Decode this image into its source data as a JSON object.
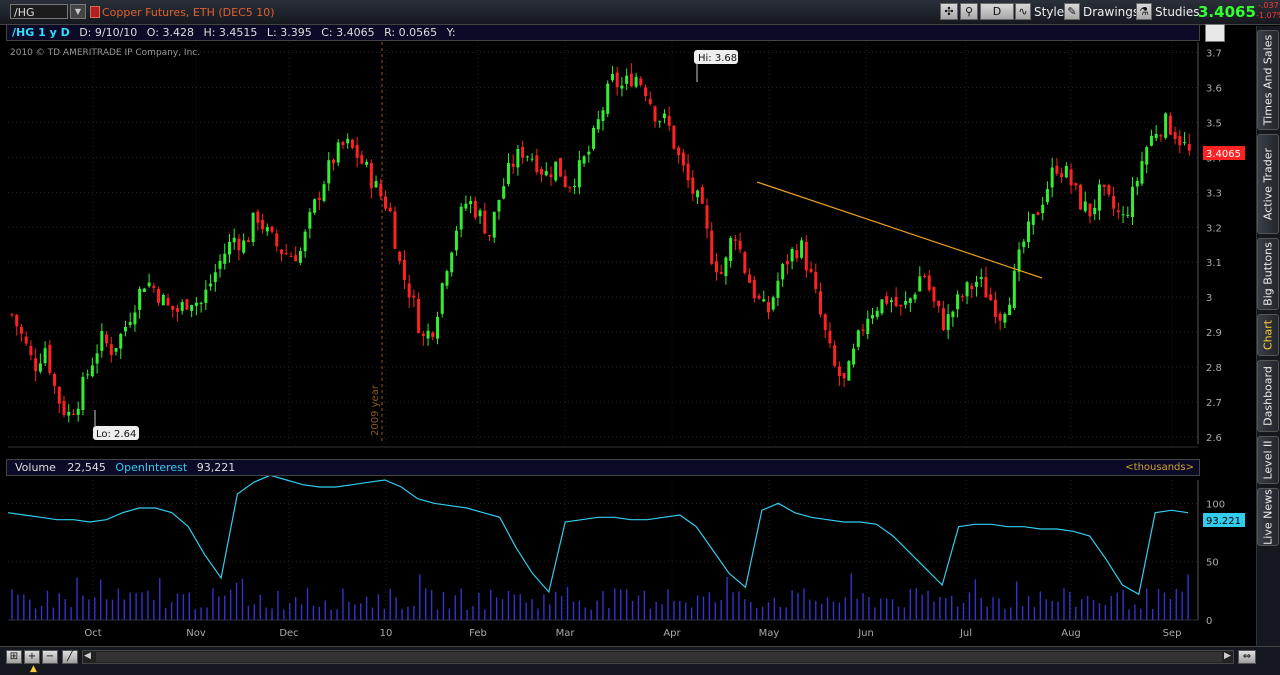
{
  "toolbar": {
    "symbol": "/HG",
    "description": "Copper Futures, ETH (DEC5 10)",
    "period_label": "D",
    "style_label": "Style",
    "drawings_label": "Drawings",
    "studies_label": "Studies",
    "last_price": "3.4065",
    "change_a": "-.037",
    "change_b": "-1.07%"
  },
  "side_tabs": [
    {
      "label": "Times And Sales",
      "active": false
    },
    {
      "label": "Active Trader",
      "active": false
    },
    {
      "label": "Big Buttons",
      "active": false
    },
    {
      "label": "Chart",
      "active": true
    },
    {
      "label": "Dashboard",
      "active": false
    },
    {
      "label": "Level II",
      "active": false
    },
    {
      "label": "Live News",
      "active": false
    }
  ],
  "info_bar": {
    "symbol": "/HG 1 y D",
    "date": "D: 9/10/10",
    "open": "O: 3.428",
    "high": "H: 3.4515",
    "low": "L: 3.395",
    "close": "C: 3.4065",
    "range": "R: 0.0565",
    "y": "Y:"
  },
  "copyright": "2010 © TD AMERITRADE IP Company, Inc.",
  "volume_bar": {
    "volume_label": "Volume",
    "volume_value": "22,545",
    "oi_label": "OpenInterest",
    "oi_value": "93,221",
    "units": "<thousands>"
  },
  "annotations": {
    "hi_label": "Hi: 3.68",
    "lo_label": "Lo: 2.64",
    "year_label": "2009 year",
    "price_tag": "3.4065",
    "oi_tag": "93.221"
  },
  "colors": {
    "up": "#33ee33",
    "down": "#ff2222",
    "trendline": "#e8a020",
    "oi_line": "#33ccee",
    "volume": "#3333cc",
    "axis_text": "#aaaaaa"
  },
  "chart_data": {
    "type": "candlestick",
    "price_axis": {
      "ticks": [
        "3.7",
        "3.6",
        "3.5",
        "3.4",
        "3.3",
        "3.2",
        "3.1",
        "3",
        "2.9",
        "2.8",
        "2.7",
        "2.6"
      ],
      "ylim": [
        2.58,
        3.73
      ]
    },
    "lower_axis": {
      "ticks": [
        "100",
        "50",
        "0"
      ],
      "ylim": [
        0,
        120
      ]
    },
    "x_ticks": [
      "Oct",
      "Nov",
      "Dec",
      "10",
      "Feb",
      "Mar",
      "Apr",
      "May",
      "Jun",
      "Jul",
      "Aug",
      "Sep"
    ],
    "close_path": [
      2.95,
      2.88,
      2.8,
      2.86,
      2.72,
      2.66,
      2.71,
      2.8,
      2.88,
      2.85,
      2.9,
      2.98,
      3.05,
      3.02,
      2.97,
      2.96,
      3.0,
      2.98,
      3.05,
      3.12,
      3.17,
      3.15,
      3.24,
      3.18,
      3.14,
      3.12,
      3.13,
      3.24,
      3.33,
      3.4,
      3.44,
      3.41,
      3.36,
      3.3,
      3.25,
      3.08,
      3.0,
      2.88,
      2.92,
      3.08,
      3.2,
      3.28,
      3.24,
      3.18,
      3.3,
      3.38,
      3.42,
      3.4,
      3.35,
      3.38,
      3.32,
      3.36,
      3.42,
      3.52,
      3.62,
      3.6,
      3.64,
      3.6,
      3.52,
      3.5,
      3.4,
      3.32,
      3.26,
      3.12,
      3.06,
      3.2,
      3.08,
      3.0,
      2.95,
      3.05,
      3.12,
      3.15,
      3.05,
      2.92,
      2.8,
      2.75,
      2.86,
      2.95,
      2.98,
      3.0,
      2.96,
      3.0,
      3.08,
      2.98,
      2.92,
      2.98,
      3.02,
      3.05,
      3.0,
      2.95,
      3.02,
      3.15,
      3.22,
      3.3,
      3.38,
      3.35,
      3.28,
      3.24,
      3.3,
      3.26,
      3.22,
      3.3,
      3.42,
      3.48,
      3.5,
      3.46,
      3.41
    ],
    "open_interest_path": [
      92,
      90,
      88,
      86,
      86,
      84,
      86,
      92,
      96,
      96,
      92,
      80,
      56,
      36,
      108,
      118,
      124,
      120,
      116,
      114,
      114,
      116,
      118,
      120,
      114,
      104,
      100,
      98,
      96,
      92,
      88,
      62,
      40,
      24,
      84,
      86,
      88,
      88,
      86,
      86,
      88,
      90,
      80,
      60,
      40,
      28,
      94,
      100,
      92,
      88,
      86,
      84,
      84,
      82,
      72,
      58,
      44,
      30,
      80,
      82,
      82,
      80,
      80,
      78,
      78,
      76,
      72,
      52,
      30,
      22,
      92,
      94,
      92
    ],
    "volume_bars": 200
  }
}
